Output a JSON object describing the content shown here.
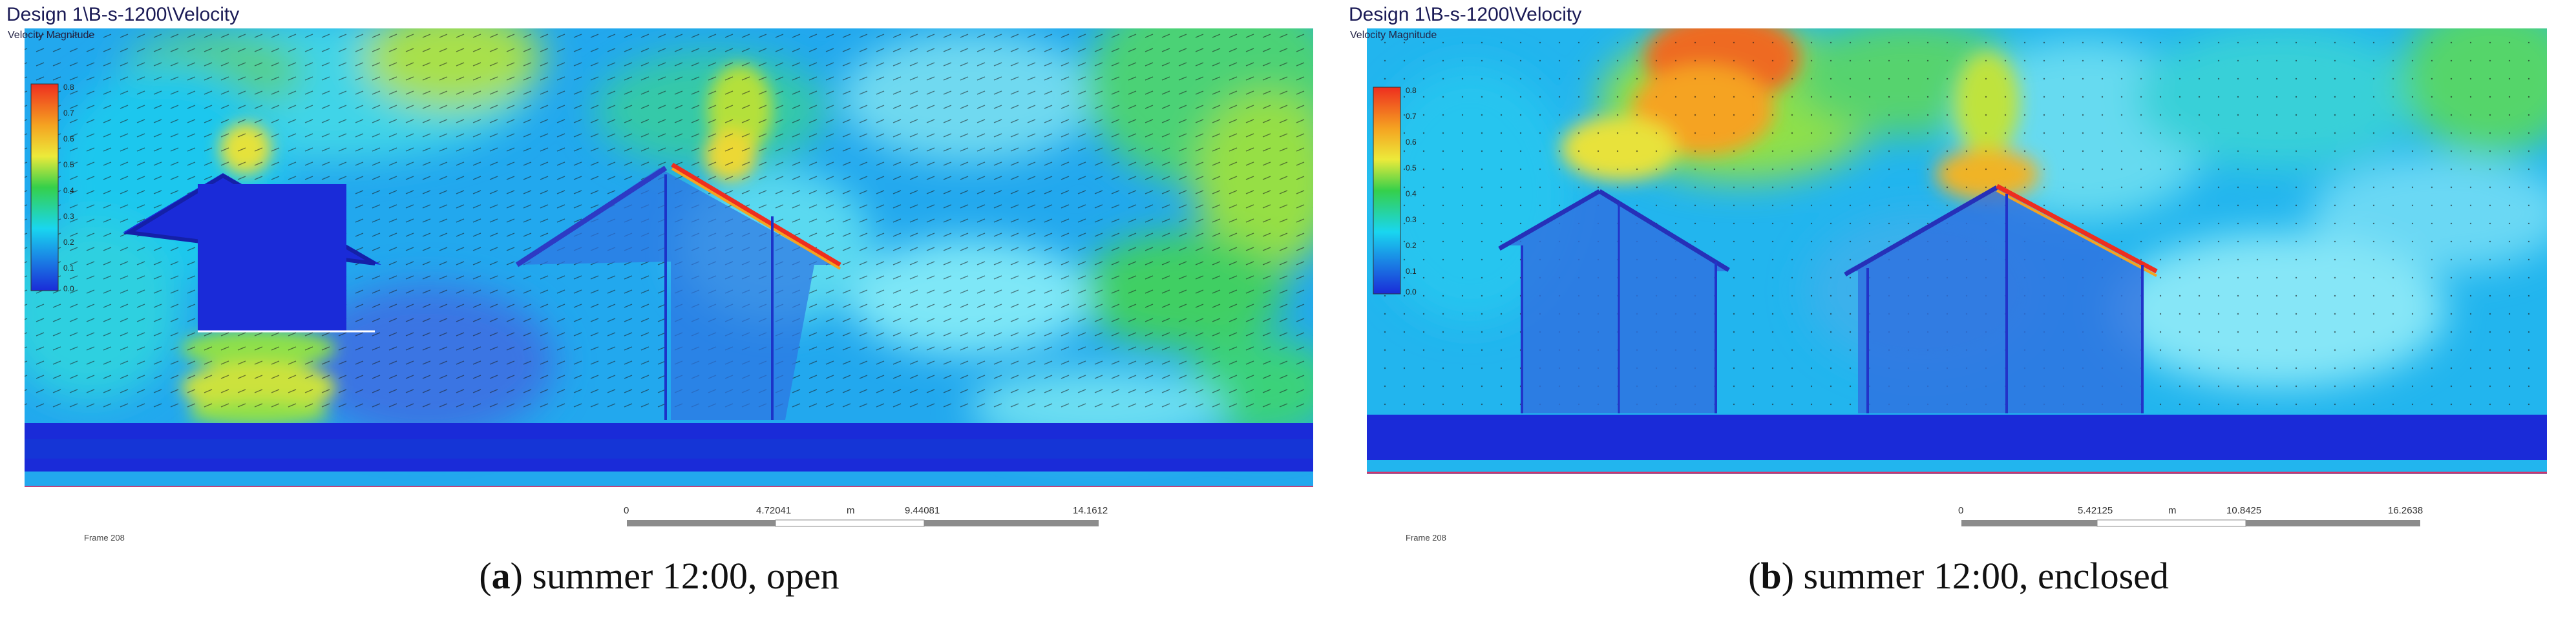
{
  "panels": [
    {
      "id": "a",
      "title_overlay": "Design 1\\B-s-1200\\Velocity",
      "legend_label": "Velocity Magnitude",
      "colorbar_ticks": [
        "0.8",
        "0.7",
        "0.6",
        "0.5",
        "0.4",
        "0.3",
        "0.2",
        "0.1",
        "0.0"
      ],
      "footer_left": "Frame 208",
      "scale_labels": [
        "0",
        "4.72041",
        "m",
        "9.44081",
        "14.1612"
      ],
      "caption_letter": "a",
      "caption_text": "summer 12:00, open"
    },
    {
      "id": "b",
      "title_overlay": "Design 1\\B-s-1200\\Velocity",
      "legend_label": "Velocity Magnitude",
      "colorbar_ticks": [
        "0.8",
        "0.7",
        "0.6",
        "0.5",
        "0.4",
        "0.3",
        "0.2",
        "0.1",
        "0.0"
      ],
      "footer_left": "Frame 208",
      "scale_labels": [
        "0",
        "5.42125",
        "m",
        "10.8425",
        "16.2638"
      ],
      "caption_letter": "b",
      "caption_text": "summer 12:00, enclosed"
    }
  ],
  "colors": {
    "cfd_blue": "#1a2bd8",
    "cfd_cyan": "#19d6f0",
    "cfd_green": "#35d04a",
    "cfd_yellow": "#ecea3a",
    "cfd_red": "#ee2e1f",
    "ground_line": "#d6336b"
  }
}
